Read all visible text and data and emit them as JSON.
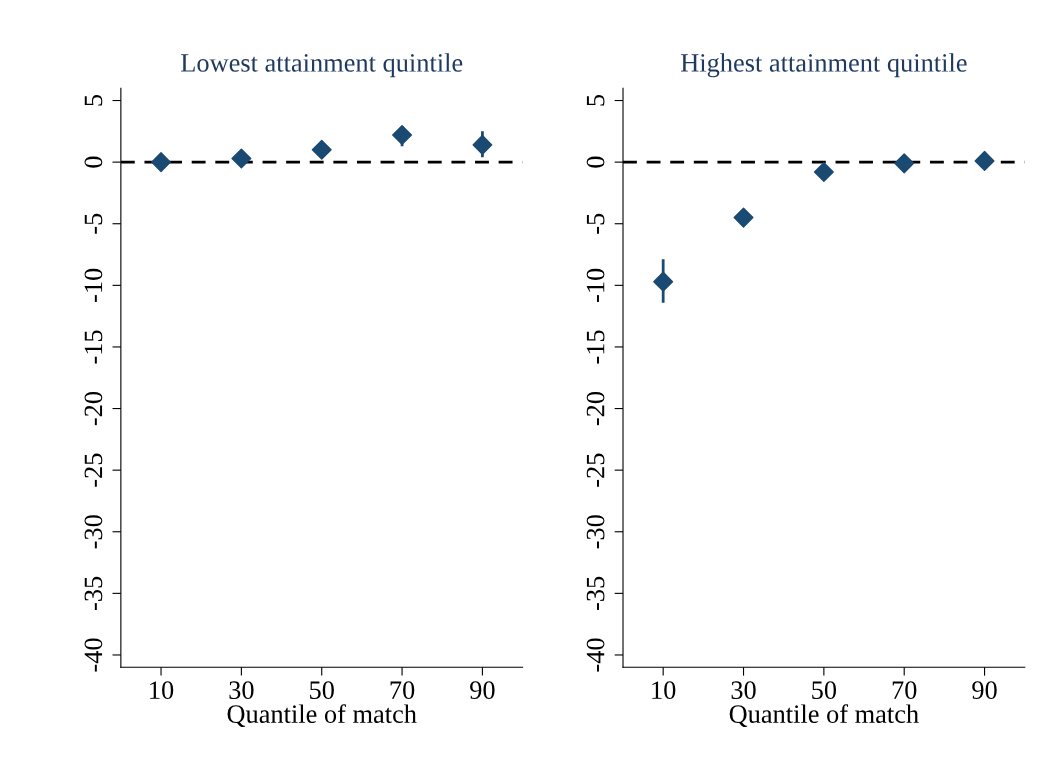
{
  "chart_data": [
    {
      "type": "scatter",
      "title": "Lowest attainment quintile",
      "xlabel": "Quantile of match",
      "x": [
        10,
        30,
        50,
        70,
        90
      ],
      "series": [
        {
          "color": "#1a4a72",
          "values": [
            0,
            0.3,
            1.0,
            2.2,
            1.4
          ],
          "errors": [
            null,
            null,
            null,
            [
              1.4,
              2.8
            ],
            [
              0.5,
              2.4
            ]
          ]
        }
      ],
      "marker": "diamond",
      "xlim": [
        0,
        100
      ],
      "xticks": [
        10,
        30,
        50,
        70,
        90
      ],
      "ylim": [
        -41,
        6
      ],
      "yticks": [
        5,
        0,
        -5,
        -10,
        -15,
        -20,
        -25,
        -30,
        -35,
        -40
      ],
      "ref_lines": [
        {
          "axis": "y",
          "value": 0,
          "color": "#000000",
          "line_style": "dashed"
        }
      ],
      "grid": false
    },
    {
      "type": "scatter",
      "title": "Highest attainment quintile",
      "xlabel": "Quantile of match",
      "x": [
        10,
        30,
        50,
        70,
        90
      ],
      "series": [
        {
          "color": "#1a4a72",
          "values": [
            -9.7,
            -4.5,
            -0.8,
            -0.1,
            0.1
          ],
          "errors": [
            [
              -11.3,
              -8.0
            ],
            null,
            null,
            null,
            null
          ]
        }
      ],
      "marker": "diamond",
      "xlim": [
        0,
        100
      ],
      "xticks": [
        10,
        30,
        50,
        70,
        90
      ],
      "ylim": [
        -41,
        6
      ],
      "yticks": [
        5,
        0,
        -5,
        -10,
        -15,
        -20,
        -25,
        -30,
        -35,
        -40
      ],
      "ref_lines": [
        {
          "axis": "y",
          "value": 0,
          "color": "#000000",
          "line_style": "dashed"
        }
      ],
      "grid": false
    }
  ]
}
